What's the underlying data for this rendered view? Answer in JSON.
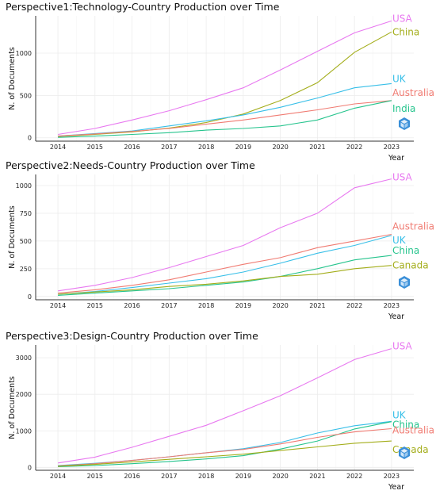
{
  "chart_data": [
    {
      "type": "line",
      "title": "Perspective1:Technology-Country Production over Time",
      "xlabel": "Year",
      "ylabel": "N. of Documents",
      "x": [
        2014,
        2015,
        2016,
        2017,
        2018,
        2019,
        2020,
        2021,
        2022,
        2023
      ],
      "xlim": [
        2013.4,
        2023.6
      ],
      "ylim": [
        -40,
        1440
      ],
      "yticks": [
        0,
        500,
        1000
      ],
      "grid": true,
      "legend": "none",
      "series": [
        {
          "name": "USA",
          "color": "#e879f0",
          "values": [
            40,
            110,
            210,
            320,
            450,
            590,
            800,
            1020,
            1240,
            1380
          ]
        },
        {
          "name": "China",
          "color": "#a3ad1a",
          "values": [
            15,
            40,
            70,
            115,
            180,
            280,
            440,
            650,
            1010,
            1250
          ]
        },
        {
          "name": "UK",
          "color": "#38bfe8",
          "values": [
            20,
            50,
            80,
            140,
            200,
            270,
            360,
            470,
            590,
            640
          ]
        },
        {
          "name": "Australia",
          "color": "#f07b72",
          "values": [
            20,
            45,
            75,
            110,
            160,
            210,
            270,
            330,
            400,
            440
          ]
        },
        {
          "name": "India",
          "color": "#26c48d",
          "values": [
            5,
            20,
            40,
            60,
            90,
            110,
            140,
            210,
            350,
            440
          ]
        }
      ]
    },
    {
      "type": "line",
      "title": "Perspective2:Needs-Country Production over Time",
      "xlabel": "Year",
      "ylabel": "N. of Documents",
      "x": [
        2014,
        2015,
        2016,
        2017,
        2018,
        2019,
        2020,
        2021,
        2022,
        2023
      ],
      "xlim": [
        2013.4,
        2023.6
      ],
      "ylim": [
        -30,
        1100
      ],
      "yticks": [
        0,
        250,
        500,
        750,
        1000
      ],
      "grid": true,
      "legend": "none",
      "series": [
        {
          "name": "USA",
          "color": "#e879f0",
          "values": [
            50,
            100,
            170,
            260,
            360,
            460,
            620,
            750,
            980,
            1060
          ]
        },
        {
          "name": "Australia",
          "color": "#f07b72",
          "values": [
            30,
            60,
            100,
            150,
            220,
            290,
            350,
            440,
            500,
            560
          ]
        },
        {
          "name": "UK",
          "color": "#38bfe8",
          "values": [
            20,
            45,
            80,
            120,
            160,
            220,
            300,
            390,
            460,
            550
          ]
        },
        {
          "name": "China",
          "color": "#26c48d",
          "values": [
            10,
            30,
            50,
            70,
            100,
            130,
            180,
            250,
            330,
            370
          ]
        },
        {
          "name": "Canada",
          "color": "#a3ad1a",
          "values": [
            20,
            40,
            60,
            90,
            110,
            140,
            180,
            200,
            250,
            280
          ]
        }
      ]
    },
    {
      "type": "line",
      "title": "Perspective3:Design-Country Production over Time",
      "xlabel": "Year",
      "ylabel": "N. of Documents",
      "x": [
        2014,
        2015,
        2016,
        2017,
        2018,
        2019,
        2020,
        2021,
        2022,
        2023
      ],
      "xlim": [
        2013.4,
        2023.6
      ],
      "ylim": [
        -80,
        3350
      ],
      "yticks": [
        0,
        1000,
        2000,
        3000
      ],
      "grid": true,
      "legend": "none",
      "series": [
        {
          "name": "USA",
          "color": "#e879f0",
          "values": [
            120,
            280,
            550,
            850,
            1150,
            1550,
            1960,
            2450,
            2950,
            3250
          ]
        },
        {
          "name": "UK",
          "color": "#38bfe8",
          "values": [
            50,
            110,
            190,
            290,
            400,
            510,
            680,
            940,
            1140,
            1260
          ]
        },
        {
          "name": "China",
          "color": "#26c48d",
          "values": [
            20,
            50,
            100,
            160,
            230,
            320,
            500,
            720,
            1050,
            1250
          ]
        },
        {
          "name": "Australia",
          "color": "#f07b72",
          "values": [
            40,
            100,
            190,
            290,
            400,
            490,
            640,
            820,
            970,
            1060
          ]
        },
        {
          "name": "Canada",
          "color": "#a3ad1a",
          "values": [
            30,
            80,
            150,
            220,
            290,
            360,
            460,
            560,
            660,
            720
          ]
        }
      ]
    }
  ]
}
